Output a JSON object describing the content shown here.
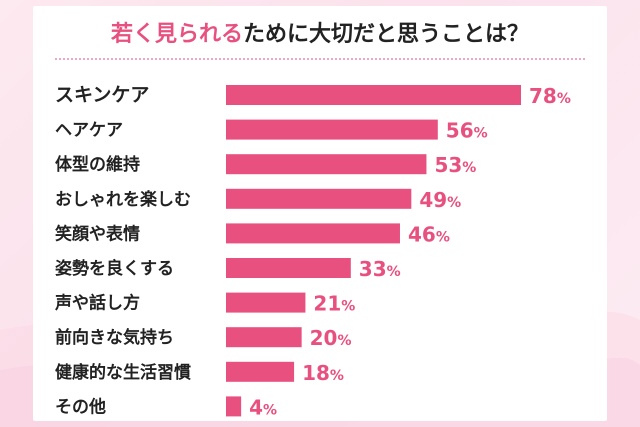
{
  "title": {
    "highlight": "若く見られる",
    "rest": "ために大切だと思うことは？"
  },
  "colors": {
    "bar": "#e8507f",
    "value_text": "#e8507f",
    "label_text": "#222222",
    "title_highlight": "#e8507f"
  },
  "chart_data": {
    "type": "bar",
    "orientation": "horizontal",
    "categories": [
      "スキンケア",
      "ヘアケア",
      "体型の維持",
      "おしゃれを楽しむ",
      "笑顔や表情",
      "姿勢を良くする",
      "声や話し方",
      "前向きな気持ち",
      "健康的な生活習慣",
      "その他"
    ],
    "values": [
      78,
      56,
      53,
      49,
      46,
      33,
      21,
      20,
      18,
      4
    ],
    "value_unit": "%",
    "xlim": [
      0,
      78
    ],
    "grid": false,
    "legend": "none"
  }
}
